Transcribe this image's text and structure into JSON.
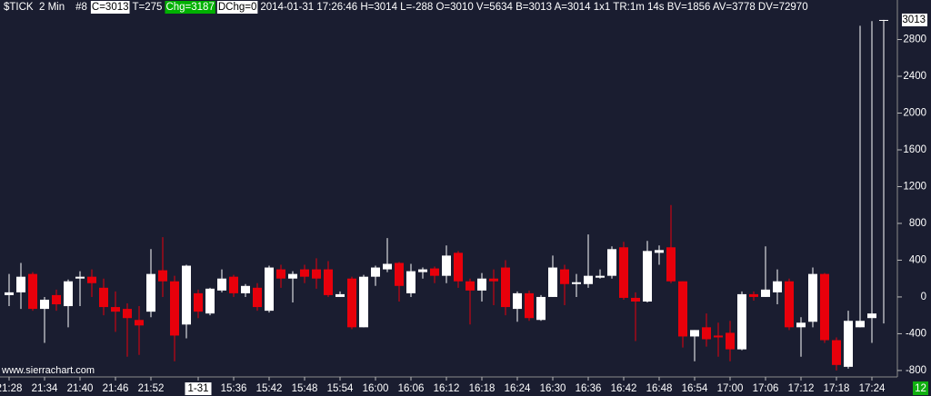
{
  "chart_data": {
    "type": "candlestick",
    "title": "$TICK  2 Min",
    "chart_number": "#8",
    "header_fields": [
      "C=3013",
      "T=275",
      "Chg=3187",
      "DChg=0",
      "2014-01-31 17:26:46 H=3014 L=-288 O=3010 V=5634 B=3013 A=3014 1x1 TR:1m 14s BV=1856 AV=3778 DV=72970"
    ],
    "header_field_backgrounds": [
      "#ffffff",
      null,
      "#00b000",
      "#ffffff",
      null
    ],
    "watermark": "www.sierrachart.com",
    "categories": [
      "21:28",
      null,
      null,
      "21:34",
      null,
      null,
      "21:40",
      null,
      null,
      "21:46",
      null,
      null,
      "21:52",
      null,
      null,
      null,
      "1-31",
      null,
      null,
      "15:36",
      null,
      null,
      "15:42",
      null,
      null,
      "15:48",
      null,
      null,
      "15:54",
      null,
      null,
      "16:00",
      null,
      null,
      "16:06",
      null,
      null,
      "16:12",
      null,
      null,
      "16:18",
      null,
      null,
      "16:24",
      null,
      null,
      "16:30",
      null,
      null,
      "16:36",
      null,
      null,
      "16:42",
      null,
      null,
      "16:48",
      null,
      null,
      "16:54",
      null,
      null,
      "17:00",
      null,
      null,
      "17:06",
      null,
      null,
      "17:12",
      null,
      null,
      "17:18",
      null,
      null,
      "17:24",
      null
    ],
    "open": [
      20,
      50,
      250,
      -130,
      20,
      -100,
      200,
      220,
      100,
      -110,
      -130,
      -250,
      -160,
      290,
      170,
      -300,
      40,
      -180,
      70,
      220,
      40,
      100,
      -150,
      300,
      200,
      300,
      300,
      300,
      0,
      200,
      -330,
      220,
      300,
      370,
      40,
      270,
      310,
      230,
      480,
      170,
      70,
      200,
      320,
      -130,
      40,
      -250,
      0,
      300,
      140,
      140,
      210,
      230,
      540,
      -10,
      -50,
      480,
      540,
      170,
      -430,
      -330,
      -420,
      -390,
      -570,
      30,
      0,
      50,
      170,
      -330,
      -270,
      250,
      -470,
      -760,
      -330,
      -230,
      3010
    ],
    "high": [
      250,
      370,
      270,
      0,
      80,
      190,
      280,
      300,
      200,
      60,
      -70,
      -100,
      520,
      650,
      230,
      350,
      80,
      100,
      300,
      240,
      140,
      150,
      340,
      350,
      280,
      350,
      420,
      390,
      60,
      220,
      240,
      340,
      640,
      380,
      360,
      320,
      330,
      560,
      500,
      200,
      260,
      300,
      400,
      60,
      70,
      20,
      450,
      350,
      250,
      680,
      300,
      550,
      600,
      50,
      610,
      560,
      1000,
      170,
      -360,
      -180,
      -280,
      -260,
      60,
      60,
      550,
      300,
      200,
      -220,
      320,
      260,
      -440,
      -150,
      2950,
      3000,
      3014
    ],
    "low": [
      -100,
      -130,
      -150,
      -500,
      -150,
      -330,
      -100,
      0,
      -200,
      -380,
      -650,
      -630,
      -220,
      0,
      -700,
      -450,
      -230,
      -200,
      50,
      0,
      0,
      -150,
      -170,
      100,
      -60,
      150,
      90,
      0,
      0,
      -350,
      -330,
      120,
      270,
      -50,
      0,
      200,
      150,
      150,
      100,
      -300,
      -50,
      -90,
      -200,
      -270,
      -260,
      -260,
      0,
      -90,
      0,
      100,
      200,
      200,
      -30,
      -480,
      -60,
      350,
      150,
      -550,
      -700,
      -540,
      -650,
      -700,
      -580,
      -40,
      0,
      -80,
      -360,
      -650,
      -330,
      -500,
      -800,
      -780,
      -330,
      -500,
      -288
    ],
    "close": [
      50,
      220,
      -130,
      -30,
      -80,
      170,
      220,
      150,
      -110,
      -160,
      -230,
      -310,
      250,
      170,
      -420,
      340,
      -160,
      90,
      200,
      40,
      120,
      -110,
      320,
      200,
      250,
      220,
      200,
      20,
      30,
      -330,
      220,
      320,
      360,
      120,
      280,
      300,
      230,
      450,
      170,
      70,
      200,
      170,
      -110,
      40,
      -230,
      0,
      320,
      140,
      160,
      230,
      230,
      520,
      -10,
      -50,
      500,
      510,
      170,
      -430,
      -360,
      -460,
      -440,
      -570,
      30,
      0,
      80,
      170,
      -330,
      -280,
      250,
      -470,
      -740,
      -260,
      -260,
      -180,
      3013
    ],
    "up_color": "#ffffff",
    "down_color": "#e8000b",
    "background": "#1a1d30",
    "ylim": [
      -870,
      3230
    ],
    "yticks": [
      -800,
      -400,
      0,
      400,
      800,
      1200,
      1600,
      2000,
      2400,
      2800
    ],
    "last_price": 3013,
    "countdown": 12,
    "countdown_color": "#10b010"
  }
}
